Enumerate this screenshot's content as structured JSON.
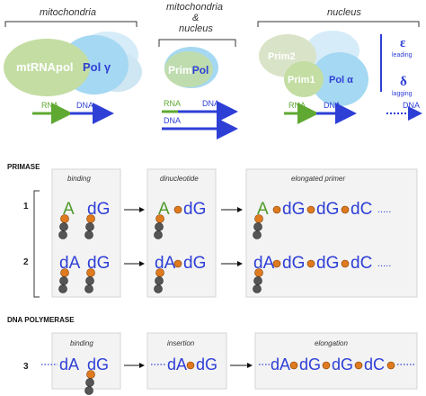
{
  "top": {
    "mito_title": "mitochondria",
    "mitonuc_title_line1": "mitochondria",
    "mitonuc_title_line2": "&",
    "mitonuc_title_line3": "nucleus",
    "nucleus_title": "nucleus",
    "mtrnapol": "mtRNApol",
    "poly": "Pol γ",
    "primpol": "PrimPol",
    "prim2": "Prim2",
    "prim1": "Prim1",
    "pola": "Pol α",
    "epsilon": "ε",
    "leading": "leading",
    "delta": "δ",
    "lagging": "lagging",
    "rna": "RNA",
    "dna": "DNA",
    "colors": {
      "green_protein": "#c3dda3",
      "blue_protein": "#a5d8f2",
      "light_blue": "#d6ecf8",
      "grey_protein": "#d9e3c8",
      "rna_arrow": "#5fa832",
      "dna_arrow": "#2e3fd6"
    }
  },
  "primase": {
    "header": "PRIMASE",
    "stage_binding": "binding",
    "stage_dinucleotide": "dinucleotide",
    "stage_elongated": "elongated primer",
    "row1_label": "1",
    "row2_label": "2",
    "A": "A",
    "dA": "dA",
    "dG": "dG",
    "dC": "dC",
    "ellipsis": "....."
  },
  "polymerase": {
    "header": "DNA POLYMERASE",
    "stage_binding": "binding",
    "stage_insertion": "insertion",
    "stage_elongation": "elongation",
    "row3_label": "3",
    "dA": "dA",
    "dG": "dG",
    "dC": "dC"
  }
}
